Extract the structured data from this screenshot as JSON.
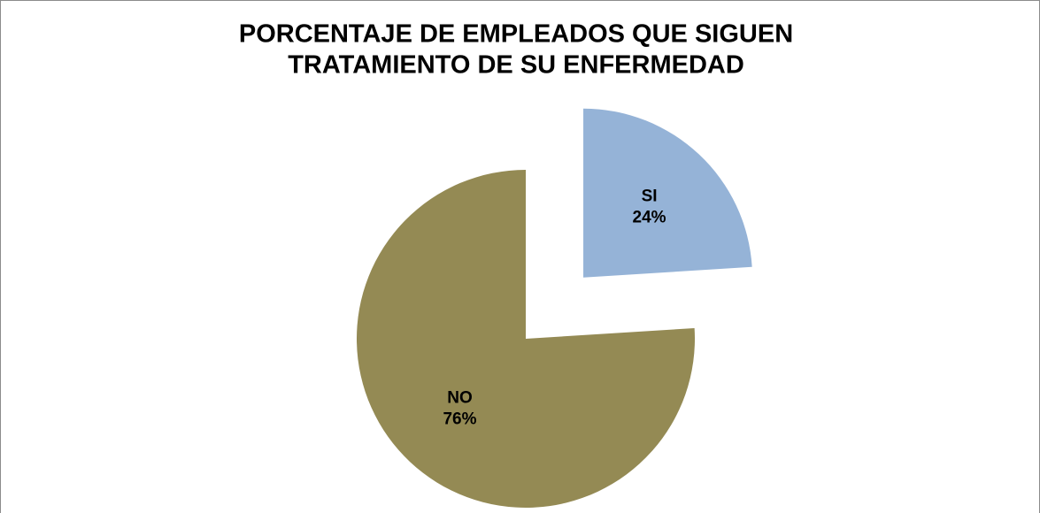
{
  "chart_data": {
    "type": "pie",
    "title": [
      "PORCENTAJE DE EMPLEADOS QUE SIGUEN",
      "TRATAMIENTO DE SU ENFERMEDAD"
    ],
    "categories": [
      "SI",
      "NO"
    ],
    "values": [
      24,
      76
    ],
    "value_labels": [
      "24%",
      "76%"
    ],
    "colors": [
      "#95b3d7",
      "#948a54"
    ]
  }
}
